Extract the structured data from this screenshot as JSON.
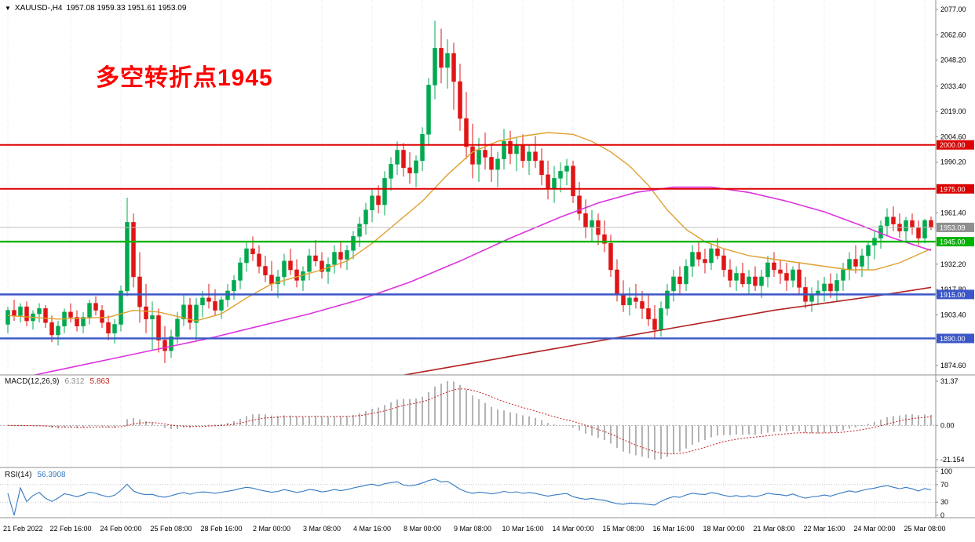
{
  "window": {
    "tick_icon": "▼",
    "symbol_period": "XAUUSD-,H4",
    "ohlc": "1957.08 1959.33 1951.61 1953.09"
  },
  "annotation": {
    "text": "多空转折点1945",
    "color": "#FF0000"
  },
  "macd_panel": {
    "name": "MACD(12,26,9)",
    "value_main": "6.312",
    "value_signal": "5.863",
    "value_colors": [
      "#8a8a8a",
      "#C42020"
    ],
    "axis_labels": [
      "31.37",
      "0.00",
      "-21.154"
    ]
  },
  "rsi_panel": {
    "name": "RSI(14)",
    "value": "56.3908",
    "value_color": "#3379C2",
    "axis_labels": [
      "100",
      "70",
      "30",
      "0"
    ],
    "dotted_levels": [
      70,
      30
    ]
  },
  "price_axis": {
    "min": 1874.6,
    "max": 2077.0,
    "visible_tick_labels": [
      "2077.00",
      "2062.60",
      "2048.20",
      "2033.40",
      "2019.00",
      "2004.60",
      "1990.20",
      "1961.40",
      "1932.20",
      "1917.80",
      "1903.40",
      "1874.60"
    ]
  },
  "levels": [
    {
      "price": 2000.0,
      "label": "2000.00",
      "color": "#DD0000",
      "width": 2
    },
    {
      "price": 1975.0,
      "label": "1975.00",
      "color": "#DD0000",
      "width": 2
    },
    {
      "price": 1945.0,
      "label": "1945.00",
      "color": "#00B300",
      "width": 2.4
    },
    {
      "price": 1915.0,
      "label": "1915.00",
      "color": "#3A56C8",
      "width": 2.4
    },
    {
      "price": 1890.0,
      "label": "1890.00",
      "color": "#3A56C8",
      "width": 2.4
    }
  ],
  "bid": {
    "price": 1953.09,
    "label": "1953.09",
    "line_color": "#bcbcbc",
    "badge_color": "#8F8F8F"
  },
  "time_axis": {
    "labels": [
      {
        "text": "21 Feb 2022",
        "i": 0
      },
      {
        "text": "22 Feb 16:00",
        "i": 10
      },
      {
        "text": "24 Feb 00:00",
        "i": 18
      },
      {
        "text": "25 Feb 08:00",
        "i": 26
      },
      {
        "text": "28 Feb 16:00",
        "i": 34
      },
      {
        "text": "2 Mar 00:00",
        "i": 42
      },
      {
        "text": "3 Mar 08:00",
        "i": 50
      },
      {
        "text": "4 Mar 16:00",
        "i": 58
      },
      {
        "text": "8 Mar 00:00",
        "i": 66
      },
      {
        "text": "9 Mar 08:00",
        "i": 74
      },
      {
        "text": "10 Mar 16:00",
        "i": 82
      },
      {
        "text": "14 Mar 00:00",
        "i": 90
      },
      {
        "text": "15 Mar 08:00",
        "i": 98
      },
      {
        "text": "16 Mar 16:00",
        "i": 106
      },
      {
        "text": "18 Mar 00:00",
        "i": 114
      },
      {
        "text": "21 Mar 08:00",
        "i": 122
      },
      {
        "text": "22 Mar 16:00",
        "i": 130
      },
      {
        "text": "24 Mar 00:00",
        "i": 138
      },
      {
        "text": "25 Mar 08:00",
        "i": 146
      }
    ]
  },
  "chart_data": {
    "type": "candlestick",
    "symbol": "XAUUSD-",
    "timeframe": "H4",
    "up_color": "#00A94F",
    "down_color": "#E01515",
    "ylim": [
      1874.6,
      2077.0
    ],
    "candles": [
      [
        1898,
        1908,
        1893,
        1906
      ],
      [
        1906,
        1912,
        1900,
        1903
      ],
      [
        1903,
        1910,
        1899,
        1908
      ],
      [
        1908,
        1911,
        1897,
        1900
      ],
      [
        1900,
        1906,
        1895,
        1904
      ],
      [
        1904,
        1910,
        1899,
        1907
      ],
      [
        1907,
        1909,
        1896,
        1899
      ],
      [
        1899,
        1903,
        1888,
        1892
      ],
      [
        1892,
        1900,
        1886,
        1897
      ],
      [
        1897,
        1907,
        1893,
        1905
      ],
      [
        1905,
        1910,
        1899,
        1902
      ],
      [
        1902,
        1906,
        1894,
        1897
      ],
      [
        1897,
        1905,
        1893,
        1902
      ],
      [
        1902,
        1912,
        1898,
        1910
      ],
      [
        1910,
        1914,
        1903,
        1906
      ],
      [
        1906,
        1909,
        1896,
        1899
      ],
      [
        1899,
        1903,
        1889,
        1893
      ],
      [
        1893,
        1901,
        1887,
        1898
      ],
      [
        1898,
        1920,
        1894,
        1917
      ],
      [
        1917,
        1970,
        1914,
        1956
      ],
      [
        1956,
        1961,
        1919,
        1925
      ],
      [
        1925,
        1939,
        1899,
        1908
      ],
      [
        1908,
        1921,
        1893,
        1901
      ],
      [
        1901,
        1911,
        1883,
        1903
      ],
      [
        1903,
        1907,
        1882,
        1889
      ],
      [
        1889,
        1897,
        1876,
        1883
      ],
      [
        1883,
        1895,
        1879,
        1891
      ],
      [
        1891,
        1905,
        1887,
        1901
      ],
      [
        1901,
        1915,
        1897,
        1909
      ],
      [
        1909,
        1913,
        1895,
        1899
      ],
      [
        1899,
        1913,
        1889,
        1909
      ],
      [
        1909,
        1917,
        1902,
        1913
      ],
      [
        1913,
        1921,
        1907,
        1911
      ],
      [
        1911,
        1918,
        1903,
        1906
      ],
      [
        1906,
        1914,
        1901,
        1912
      ],
      [
        1912,
        1921,
        1908,
        1917
      ],
      [
        1917,
        1926,
        1912,
        1923
      ],
      [
        1923,
        1936,
        1918,
        1933
      ],
      [
        1933,
        1945,
        1928,
        1941
      ],
      [
        1941,
        1948,
        1934,
        1938
      ],
      [
        1938,
        1943,
        1927,
        1931
      ],
      [
        1931,
        1937,
        1922,
        1926
      ],
      [
        1926,
        1934,
        1917,
        1921
      ],
      [
        1921,
        1929,
        1913,
        1925
      ],
      [
        1925,
        1938,
        1920,
        1934
      ],
      [
        1934,
        1941,
        1926,
        1929
      ],
      [
        1929,
        1935,
        1919,
        1923
      ],
      [
        1923,
        1931,
        1917,
        1928
      ],
      [
        1928,
        1941,
        1923,
        1937
      ],
      [
        1937,
        1946,
        1931,
        1934
      ],
      [
        1934,
        1939,
        1924,
        1928
      ],
      [
        1928,
        1936,
        1921,
        1932
      ],
      [
        1932,
        1943,
        1927,
        1939
      ],
      [
        1939,
        1945,
        1930,
        1935
      ],
      [
        1935,
        1943,
        1929,
        1940
      ],
      [
        1940,
        1951,
        1935,
        1948
      ],
      [
        1948,
        1959,
        1942,
        1955
      ],
      [
        1955,
        1967,
        1949,
        1963
      ],
      [
        1963,
        1975,
        1956,
        1971
      ],
      [
        1971,
        1977,
        1961,
        1966
      ],
      [
        1966,
        1985,
        1960,
        1981
      ],
      [
        1981,
        1993,
        1974,
        1989
      ],
      [
        1989,
        2002,
        1983,
        1997
      ],
      [
        1997,
        2001,
        1982,
        1987
      ],
      [
        1987,
        1996,
        1978,
        1984
      ],
      [
        1984,
        1994,
        1976,
        1991
      ],
      [
        1991,
        2010,
        1985,
        2006
      ],
      [
        2006,
        2038,
        2000,
        2034
      ],
      [
        2034,
        2070.5,
        2026,
        2055
      ],
      [
        2055,
        2066,
        2035,
        2044
      ],
      [
        2044,
        2060,
        2032,
        2052
      ],
      [
        2052,
        2058,
        2020,
        2036
      ],
      [
        2036,
        2046,
        2008,
        2015
      ],
      [
        2015,
        2030,
        1992,
        1999
      ],
      [
        1999,
        2012,
        1981,
        1989
      ],
      [
        1989,
        2004,
        1979,
        1997
      ],
      [
        1997,
        2007,
        1986,
        1993
      ],
      [
        1993,
        2001,
        1979,
        1986
      ],
      [
        1986,
        1996,
        1976,
        1992
      ],
      [
        1992,
        2009,
        1986,
        2002
      ],
      [
        2002,
        2008,
        1989,
        1995
      ],
      [
        1995,
        2004,
        1985,
        2000
      ],
      [
        2000,
        2006,
        1987,
        1991
      ],
      [
        1991,
        2000,
        1983,
        1996
      ],
      [
        1996,
        2005,
        1987,
        1991
      ],
      [
        1991,
        1998,
        1977,
        1983
      ],
      [
        1983,
        1991,
        1969,
        1975
      ],
      [
        1975,
        1988,
        1967,
        1981
      ],
      [
        1981,
        1990,
        1973,
        1985
      ],
      [
        1985,
        1992,
        1977,
        1988
      ],
      [
        1988,
        1991,
        1967,
        1971
      ],
      [
        1971,
        1979,
        1957,
        1961
      ],
      [
        1961,
        1969,
        1947,
        1953
      ],
      [
        1953,
        1963,
        1945,
        1957
      ],
      [
        1957,
        1961,
        1943,
        1949
      ],
      [
        1949,
        1957,
        1939,
        1944
      ],
      [
        1944,
        1949,
        1925,
        1929
      ],
      [
        1929,
        1935,
        1911,
        1915
      ],
      [
        1915,
        1923,
        1905,
        1909
      ],
      [
        1909,
        1919,
        1903,
        1913
      ],
      [
        1913,
        1921,
        1907,
        1911
      ],
      [
        1911,
        1917,
        1901,
        1907
      ],
      [
        1907,
        1915,
        1897,
        1901
      ],
      [
        1901,
        1909,
        1890,
        1895
      ],
      [
        1895,
        1911,
        1891,
        1907
      ],
      [
        1907,
        1921,
        1903,
        1917
      ],
      [
        1917,
        1929,
        1911,
        1925
      ],
      [
        1925,
        1931,
        1915,
        1921
      ],
      [
        1921,
        1935,
        1917,
        1931
      ],
      [
        1931,
        1943,
        1925,
        1939
      ],
      [
        1939,
        1945,
        1931,
        1935
      ],
      [
        1935,
        1941,
        1927,
        1933
      ],
      [
        1933,
        1944,
        1929,
        1941
      ],
      [
        1941,
        1947,
        1935,
        1937
      ],
      [
        1937,
        1941,
        1925,
        1929
      ],
      [
        1929,
        1935,
        1919,
        1923
      ],
      [
        1923,
        1931,
        1917,
        1927
      ],
      [
        1927,
        1933,
        1919,
        1921
      ],
      [
        1921,
        1929,
        1915,
        1925
      ],
      [
        1925,
        1931,
        1917,
        1920
      ],
      [
        1920,
        1929,
        1913,
        1925
      ],
      [
        1925,
        1937,
        1919,
        1933
      ],
      [
        1933,
        1939,
        1925,
        1929
      ],
      [
        1929,
        1935,
        1921,
        1927
      ],
      [
        1927,
        1933,
        1917,
        1923
      ],
      [
        1923,
        1931,
        1919,
        1929
      ],
      [
        1929,
        1933,
        1915,
        1919
      ],
      [
        1919,
        1925,
        1907,
        1911
      ],
      [
        1911,
        1919,
        1905,
        1915
      ],
      [
        1915,
        1923,
        1909,
        1917
      ],
      [
        1917,
        1925,
        1911,
        1921
      ],
      [
        1921,
        1927,
        1913,
        1917
      ],
      [
        1917,
        1927,
        1911,
        1923
      ],
      [
        1923,
        1933,
        1917,
        1929
      ],
      [
        1929,
        1939,
        1923,
        1935
      ],
      [
        1935,
        1943,
        1927,
        1931
      ],
      [
        1931,
        1941,
        1925,
        1937
      ],
      [
        1937,
        1945,
        1929,
        1943
      ],
      [
        1943,
        1951,
        1935,
        1947
      ],
      [
        1947,
        1957,
        1941,
        1954
      ],
      [
        1954,
        1964,
        1948,
        1959
      ],
      [
        1959,
        1965,
        1951,
        1955
      ],
      [
        1955,
        1961,
        1947,
        1951
      ],
      [
        1951,
        1959,
        1945,
        1957
      ],
      [
        1957,
        1961,
        1949,
        1953
      ],
      [
        1953,
        1957,
        1943,
        1947
      ],
      [
        1947,
        1958,
        1944,
        1957.08
      ],
      [
        1957.08,
        1959.33,
        1951.61,
        1953.09
      ]
    ],
    "moving_averages": [
      {
        "name": "fast-ma-orange",
        "color": "#DFA02F",
        "width": 1.4,
        "points": [
          [
            0,
            1903
          ],
          [
            8,
            1901
          ],
          [
            16,
            1902
          ],
          [
            20,
            1906
          ],
          [
            24,
            1905
          ],
          [
            30,
            1900
          ],
          [
            34,
            1904
          ],
          [
            38,
            1913
          ],
          [
            42,
            1921
          ],
          [
            46,
            1925
          ],
          [
            50,
            1929
          ],
          [
            54,
            1934
          ],
          [
            58,
            1944
          ],
          [
            62,
            1956
          ],
          [
            66,
            1968
          ],
          [
            70,
            1983
          ],
          [
            74,
            1996
          ],
          [
            78,
            2002
          ],
          [
            82,
            2005
          ],
          [
            86,
            2007
          ],
          [
            90,
            2006
          ],
          [
            93,
            2002
          ],
          [
            96,
            1996
          ],
          [
            99,
            1988
          ],
          [
            102,
            1977
          ],
          [
            105,
            1963
          ],
          [
            108,
            1952
          ],
          [
            111,
            1945
          ],
          [
            114,
            1941
          ],
          [
            118,
            1937
          ],
          [
            122,
            1935
          ],
          [
            126,
            1933
          ],
          [
            130,
            1931
          ],
          [
            134,
            1929
          ],
          [
            138,
            1929
          ],
          [
            142,
            1933
          ],
          [
            147,
            1941
          ]
        ]
      },
      {
        "name": "mid-ma-magenta",
        "color": "#DD33DD",
        "width": 1.6,
        "points": [
          [
            0,
            1866
          ],
          [
            8,
            1872
          ],
          [
            16,
            1878
          ],
          [
            24,
            1884
          ],
          [
            32,
            1890
          ],
          [
            40,
            1897
          ],
          [
            48,
            1904
          ],
          [
            56,
            1912
          ],
          [
            64,
            1922
          ],
          [
            72,
            1934
          ],
          [
            80,
            1947
          ],
          [
            88,
            1959
          ],
          [
            94,
            1967
          ],
          [
            100,
            1973
          ],
          [
            106,
            1976
          ],
          [
            112,
            1976
          ],
          [
            118,
            1973
          ],
          [
            124,
            1968
          ],
          [
            130,
            1962
          ],
          [
            136,
            1954
          ],
          [
            141,
            1947
          ],
          [
            147,
            1940
          ]
        ]
      },
      {
        "name": "slow-ma-darkred",
        "color": "#B22222",
        "width": 1.6,
        "points": [
          [
            58,
            1866
          ],
          [
            66,
            1871
          ],
          [
            74,
            1876
          ],
          [
            82,
            1881
          ],
          [
            90,
            1886
          ],
          [
            98,
            1891
          ],
          [
            106,
            1896
          ],
          [
            114,
            1901
          ],
          [
            122,
            1906
          ],
          [
            130,
            1910
          ],
          [
            138,
            1914
          ],
          [
            147,
            1919
          ]
        ]
      }
    ],
    "macd": {
      "params": [
        12,
        26,
        9
      ],
      "hist_color": "#B4B4B4",
      "signal_color": "#C42020"
    },
    "rsi": {
      "period": 14,
      "color": "#3379C2"
    }
  }
}
